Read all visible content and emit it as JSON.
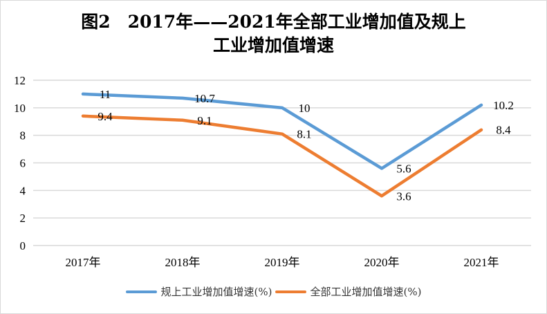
{
  "chart_data": {
    "type": "line",
    "title": "图2　2017年——2021年全部工业增加值及规上工业增加值增速",
    "title_lines": [
      "图2　2017年——2021年全部工业增加值及规上",
      "工业增加值增速"
    ],
    "categories": [
      "2017年",
      "2018年",
      "2019年",
      "2020年",
      "2021年"
    ],
    "ylim": [
      0,
      12
    ],
    "yticks": [
      0,
      2,
      4,
      6,
      8,
      10,
      12
    ],
    "grid": true,
    "legend_position": "bottom",
    "data_labels": true,
    "series": [
      {
        "name": "规上工业增加值增速(%)",
        "values": [
          11,
          10.7,
          10,
          5.6,
          10.2
        ],
        "color": "#5b9bd5"
      },
      {
        "name": "全部工业增加值增速(%)",
        "values": [
          9.4,
          9.1,
          8.1,
          3.6,
          8.4
        ],
        "color": "#ed7d31"
      }
    ]
  }
}
